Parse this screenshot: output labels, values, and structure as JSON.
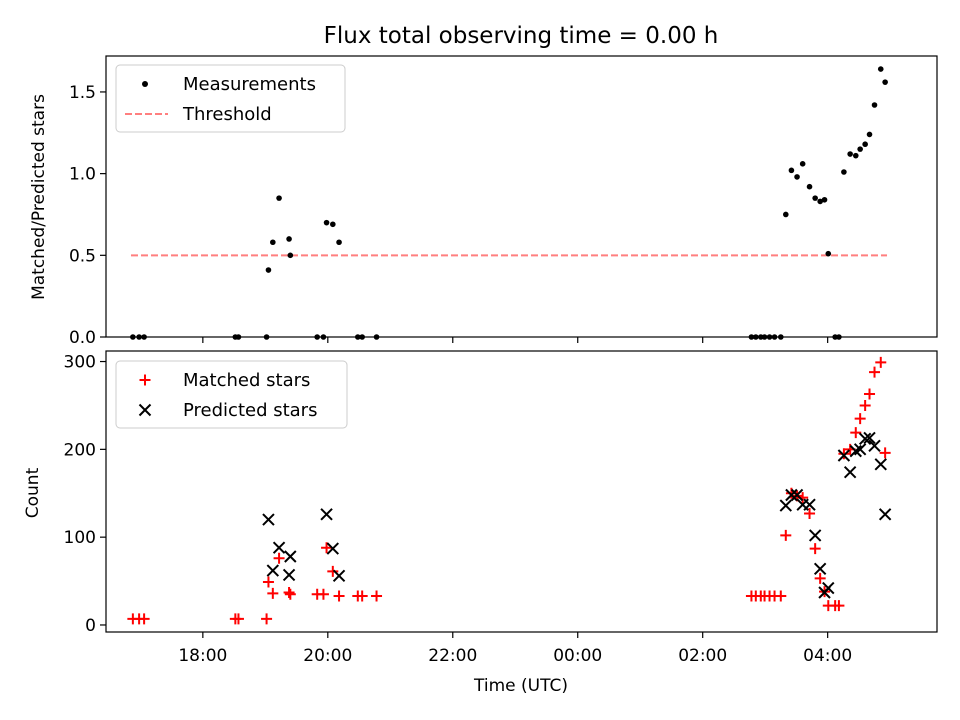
{
  "chart_data": [
    {
      "type": "scatter",
      "title": "Flux total observing time = 0.00 h",
      "xlabel": "",
      "ylabel": "Matched/Predicted stars",
      "ylim": [
        0,
        1.72
      ],
      "yticks": [
        0.0,
        0.5,
        1.0,
        1.5
      ],
      "ytick_labels": [
        "0.0",
        "0.5",
        "1.0",
        "1.5"
      ],
      "xlim_hours": [
        16.45,
        29.75
      ],
      "legend_position": "upper-left",
      "series": [
        {
          "name": "Measurements",
          "marker": "dot",
          "color": "#000000",
          "points": [
            [
              16.88,
              0
            ],
            [
              16.98,
              0
            ],
            [
              17.06,
              0
            ],
            [
              18.52,
              0
            ],
            [
              18.57,
              0
            ],
            [
              19.02,
              0
            ],
            [
              19.05,
              0.41
            ],
            [
              19.12,
              0.58
            ],
            [
              19.22,
              0.85
            ],
            [
              19.38,
              0.6
            ],
            [
              19.4,
              0.5
            ],
            [
              19.83,
              0
            ],
            [
              19.93,
              0
            ],
            [
              19.98,
              0.7
            ],
            [
              20.08,
              0.69
            ],
            [
              20.18,
              0.58
            ],
            [
              20.48,
              0
            ],
            [
              20.55,
              0
            ],
            [
              20.78,
              0
            ],
            [
              26.78,
              0
            ],
            [
              26.85,
              0
            ],
            [
              26.93,
              0
            ],
            [
              26.99,
              0
            ],
            [
              27.07,
              0
            ],
            [
              27.15,
              0
            ],
            [
              27.25,
              0
            ],
            [
              27.33,
              0.75
            ],
            [
              27.42,
              1.02
            ],
            [
              27.51,
              0.98
            ],
            [
              27.6,
              1.06
            ],
            [
              27.71,
              0.92
            ],
            [
              27.8,
              0.85
            ],
            [
              27.88,
              0.83
            ],
            [
              27.95,
              0.84
            ],
            [
              28.01,
              0.51
            ],
            [
              28.12,
              0
            ],
            [
              28.18,
              0
            ],
            [
              28.26,
              1.01
            ],
            [
              28.36,
              1.12
            ],
            [
              28.45,
              1.11
            ],
            [
              28.52,
              1.15
            ],
            [
              28.6,
              1.18
            ],
            [
              28.67,
              1.24
            ],
            [
              28.75,
              1.42
            ],
            [
              28.85,
              1.64
            ],
            [
              28.92,
              1.56
            ]
          ]
        },
        {
          "name": "Threshold",
          "marker": "dashed-line",
          "color": "#ff7f7f",
          "x": [
            16.85,
            28.95
          ],
          "y": [
            0.5,
            0.5
          ]
        }
      ]
    },
    {
      "type": "scatter",
      "title": "",
      "xlabel": "Time (UTC)",
      "ylabel": "Count",
      "ylim": [
        -8,
        312
      ],
      "yticks": [
        0,
        100,
        200,
        300
      ],
      "ytick_labels": [
        "0",
        "100",
        "200",
        "300"
      ],
      "xlim_hours": [
        16.45,
        29.75
      ],
      "xticks_hours": [
        18,
        20,
        22,
        24,
        26,
        28
      ],
      "xtick_labels": [
        "18:00",
        "20:00",
        "22:00",
        "00:00",
        "02:00",
        "04:00"
      ],
      "legend_position": "upper-left",
      "series": [
        {
          "name": "Matched stars",
          "marker": "plus",
          "color": "#ff0000",
          "points": [
            [
              16.88,
              7
            ],
            [
              16.98,
              7
            ],
            [
              17.06,
              7
            ],
            [
              18.52,
              7
            ],
            [
              18.57,
              7
            ],
            [
              19.02,
              7
            ],
            [
              19.05,
              49
            ],
            [
              19.12,
              36
            ],
            [
              19.22,
              76
            ],
            [
              19.38,
              37
            ],
            [
              19.4,
              35
            ],
            [
              19.83,
              35
            ],
            [
              19.93,
              35
            ],
            [
              19.98,
              88
            ],
            [
              20.08,
              61
            ],
            [
              20.18,
              33
            ],
            [
              20.48,
              33
            ],
            [
              20.55,
              33
            ],
            [
              20.78,
              33
            ],
            [
              26.78,
              33
            ],
            [
              26.85,
              33
            ],
            [
              26.93,
              33
            ],
            [
              26.99,
              33
            ],
            [
              27.07,
              33
            ],
            [
              27.15,
              33
            ],
            [
              27.25,
              33
            ],
            [
              27.33,
              102
            ],
            [
              27.42,
              150
            ],
            [
              27.51,
              147
            ],
            [
              27.6,
              145
            ],
            [
              27.71,
              127
            ],
            [
              27.8,
              87
            ],
            [
              27.88,
              53
            ],
            [
              27.95,
              38
            ],
            [
              28.01,
              22
            ],
            [
              28.12,
              22
            ],
            [
              28.18,
              22
            ],
            [
              28.26,
              195
            ],
            [
              28.36,
              200
            ],
            [
              28.45,
              219
            ],
            [
              28.52,
              235
            ],
            [
              28.6,
              250
            ],
            [
              28.67,
              263
            ],
            [
              28.75,
              288
            ],
            [
              28.85,
              299
            ],
            [
              28.92,
              196
            ]
          ]
        },
        {
          "name": "Predicted stars",
          "marker": "x",
          "color": "#000000",
          "points": [
            [
              19.05,
              120
            ],
            [
              19.12,
              62
            ],
            [
              19.22,
              88
            ],
            [
              19.38,
              57
            ],
            [
              19.4,
              78
            ],
            [
              19.98,
              126
            ],
            [
              20.08,
              87
            ],
            [
              20.18,
              56
            ],
            [
              27.33,
              136
            ],
            [
              27.42,
              148
            ],
            [
              27.51,
              148
            ],
            [
              27.6,
              137
            ],
            [
              27.71,
              137
            ],
            [
              27.8,
              102
            ],
            [
              27.88,
              64
            ],
            [
              27.95,
              37
            ],
            [
              28.01,
              42
            ],
            [
              28.26,
              193
            ],
            [
              28.36,
              174
            ],
            [
              28.45,
              198
            ],
            [
              28.52,
              200
            ],
            [
              28.6,
              212
            ],
            [
              28.67,
              213
            ],
            [
              28.75,
              204
            ],
            [
              28.85,
              183
            ],
            [
              28.92,
              126
            ]
          ]
        }
      ]
    }
  ]
}
